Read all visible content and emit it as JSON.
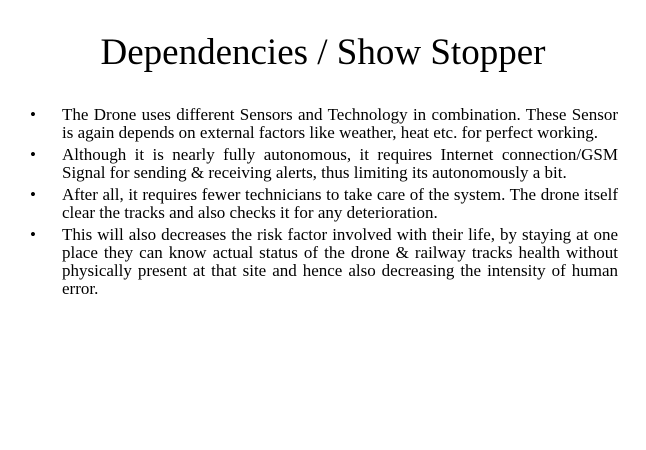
{
  "slide": {
    "title": "Dependencies / Show Stopper",
    "bullet_glyph": "•",
    "bullets": [
      {
        "text": "The Drone uses different Sensors and Technology in combination. These Sensor is again depends on external factors like weather, heat etc. for perfect working."
      },
      {
        "text": "Although it is nearly fully autonomous, it requires Internet connection/GSM Signal for sending & receiving alerts, thus limiting its autonomously  a bit."
      },
      {
        "text": "After all, it requires fewer technicians to take care of the system. The drone itself clear the tracks and also checks it for any deterioration."
      },
      {
        "text": "This will also decreases the risk factor involved with their life, by staying at one place they can know actual status of the drone & railway tracks health without physically present at that site and hence also decreasing the intensity of human  error."
      }
    ]
  }
}
